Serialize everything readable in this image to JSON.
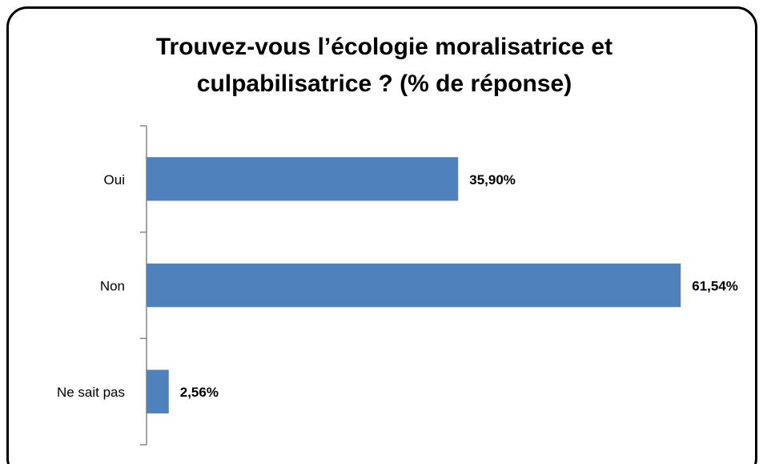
{
  "chart_data": {
    "type": "barh",
    "title": "Trouvez-vous l’écologie moralisatrice et culpabilisatrice ? (% de réponse)",
    "categories": [
      "Oui",
      "Non",
      "Ne sait pas"
    ],
    "values": [
      35.9,
      61.54,
      2.56
    ],
    "value_labels": [
      "35,90%",
      "61,54%",
      "2,56%"
    ],
    "color": "#4f81bd",
    "xlim": [
      0,
      70
    ]
  }
}
